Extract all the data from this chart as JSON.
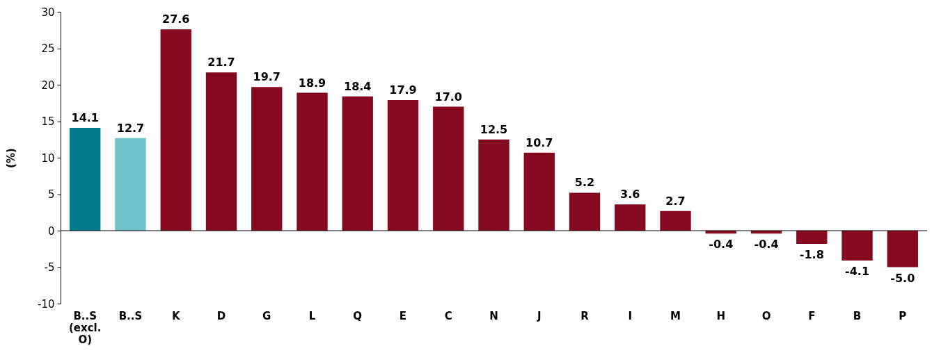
{
  "chart_data": {
    "type": "bar",
    "ylabel": "(%)",
    "categories": [
      "B..S (excl. O)",
      "B..S",
      "K",
      "D",
      "G",
      "L",
      "Q",
      "E",
      "C",
      "N",
      "J",
      "R",
      "I",
      "M",
      "H",
      "O",
      "F",
      "B",
      "P"
    ],
    "values": [
      14.1,
      12.7,
      27.6,
      21.7,
      19.7,
      18.9,
      18.4,
      17.9,
      17.0,
      12.5,
      10.7,
      5.2,
      3.6,
      2.7,
      -0.4,
      -0.4,
      -1.8,
      -4.1,
      -5.0
    ],
    "value_labels": [
      "14.1",
      "12.7",
      "27.6",
      "21.7",
      "19.7",
      "18.9",
      "18.4",
      "17.9",
      "17.0",
      "12.5",
      "10.7",
      "5.2",
      "3.6",
      "2.7",
      "-0.4",
      "-0.4",
      "-1.8",
      "-4.1",
      "-5.0"
    ],
    "colors": [
      "#007a8c",
      "#6dc2cc",
      "#85091f",
      "#85091f",
      "#85091f",
      "#85091f",
      "#85091f",
      "#85091f",
      "#85091f",
      "#85091f",
      "#85091f",
      "#85091f",
      "#85091f",
      "#85091f",
      "#85091f",
      "#85091f",
      "#85091f",
      "#85091f",
      "#85091f"
    ],
    "ylim": [
      -10,
      30
    ],
    "yticks": [
      -10,
      -5,
      0,
      5,
      10,
      15,
      20,
      25,
      30
    ]
  }
}
